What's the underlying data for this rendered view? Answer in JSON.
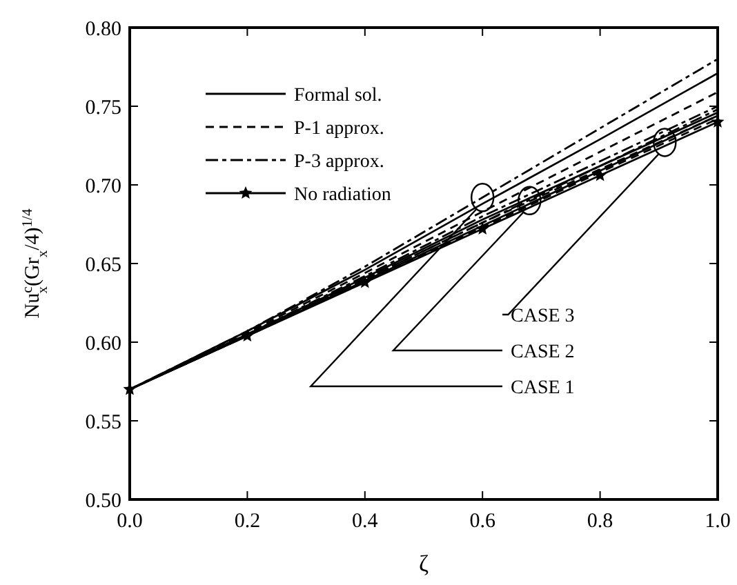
{
  "chart_data": {
    "type": "line",
    "xlabel": "ζ",
    "ylabel": "Nu$^{c}$$_{x}$(Gr$_{x}$/4)$^{1/4}$",
    "x": [
      0,
      0.2,
      0.4,
      0.6,
      0.8,
      1.0
    ],
    "xlim": [
      0,
      1.0
    ],
    "ylim": [
      0.5,
      0.8
    ],
    "xticks": [
      {
        "value": 0,
        "label": "0.0"
      },
      {
        "value": 0.2,
        "label": "0.2"
      },
      {
        "value": 0.4,
        "label": "0.4"
      },
      {
        "value": 0.6,
        "label": "0.6"
      },
      {
        "value": 0.8,
        "label": "0.8"
      },
      {
        "value": 1.0,
        "label": "1.0"
      }
    ],
    "yticks": [
      {
        "value": 0.5,
        "label": "0.50"
      },
      {
        "value": 0.55,
        "label": "0.55"
      },
      {
        "value": 0.6,
        "label": "0.60"
      },
      {
        "value": 0.65,
        "label": "0.65"
      },
      {
        "value": 0.7,
        "label": "0.70"
      },
      {
        "value": 0.75,
        "label": "0.75"
      },
      {
        "value": 0.8,
        "label": "0.80"
      }
    ],
    "grid": false,
    "legend": "top left",
    "series": [
      {
        "name": "Formal sol.",
        "color": "#000000",
        "line_style": "solid",
        "values": [
          0.57,
          0.607,
          0.646,
          0.688,
          0.729,
          0.771
        ]
      },
      {
        "name": "P-1 approx.",
        "color": "#000000",
        "line_style": "dashed",
        "values": [
          0.57,
          0.606,
          0.644,
          0.683,
          0.721,
          0.759
        ]
      },
      {
        "name": "P-3 approx.",
        "color": "#000000",
        "line_style": "dashdot",
        "values": [
          0.57,
          0.607,
          0.648,
          0.692,
          0.736,
          0.78
        ]
      },
      {
        "name": "No radiation",
        "color": "#000000",
        "line_style": "solid",
        "marker": "star",
        "values": [
          0.57,
          0.604,
          0.638,
          0.672,
          0.706,
          0.74
        ]
      },
      {
        "color": "#000000",
        "line_style": "solid",
        "values": [
          0.57,
          0.605,
          0.641,
          0.678,
          0.712,
          0.746
        ]
      },
      {
        "color": "#000000",
        "line_style": "dashed",
        "values": [
          0.57,
          0.605,
          0.64,
          0.676,
          0.71,
          0.744
        ]
      },
      {
        "color": "#000000",
        "line_style": "dashdot",
        "values": [
          0.57,
          0.605,
          0.642,
          0.68,
          0.715,
          0.75
        ]
      },
      {
        "color": "#000000",
        "line_style": "solid",
        "values": [
          0.57,
          0.604,
          0.639,
          0.674,
          0.709,
          0.744
        ]
      },
      {
        "color": "#000000",
        "line_style": "dashed",
        "values": [
          0.57,
          0.604,
          0.639,
          0.673,
          0.708,
          0.742
        ]
      },
      {
        "color": "#000000",
        "line_style": "dashdot",
        "values": [
          0.57,
          0.605,
          0.64,
          0.676,
          0.712,
          0.748
        ]
      }
    ],
    "annotations": [
      {
        "text": "CASE 3",
        "x": 0.91,
        "y": 0.727
      },
      {
        "text": "CASE 2",
        "x": 0.68,
        "y": 0.69
      },
      {
        "text": "CASE 1",
        "x": 0.6,
        "y": 0.692
      }
    ]
  }
}
